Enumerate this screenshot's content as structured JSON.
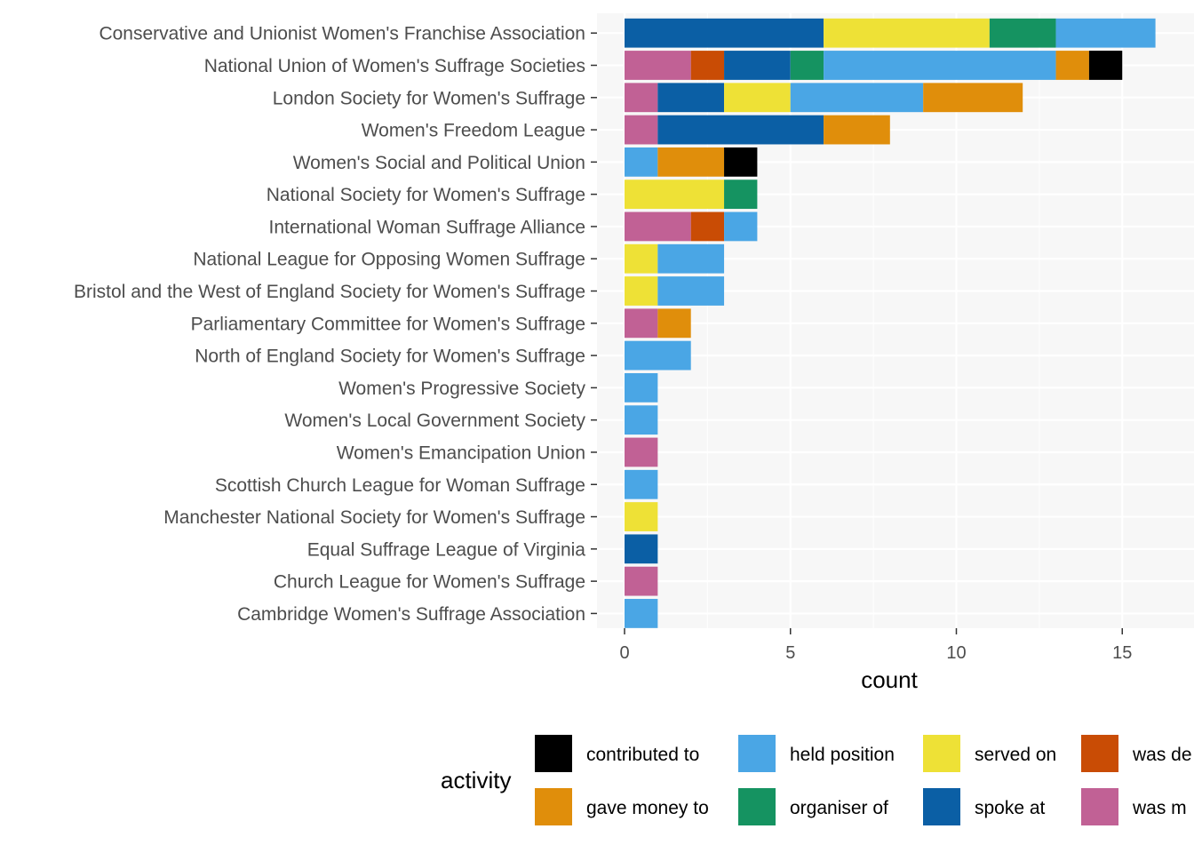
{
  "chart_data": {
    "type": "bar",
    "orientation": "horizontal",
    "stacked": true,
    "xlabel": "count",
    "ylabel": "",
    "xlim": [
      0,
      16.8
    ],
    "x_ticks": [
      0,
      5,
      10,
      15
    ],
    "grid": true,
    "legend_position": "bottom",
    "legend_title": "activity",
    "categories": [
      "Conservative and Unionist Women's Franchise Association",
      "National Union of Women's Suffrage Societies",
      "London Society for Women's Suffrage",
      "Women's Freedom League",
      "Women's Social and Political Union",
      "National Society for Women's Suffrage",
      "International Woman Suffrage Alliance",
      "National League for Opposing Women Suffrage",
      "Bristol and the West of England Society for Women's Suffrage",
      "Parliamentary Committee for Women's Suffrage",
      "North of England Society for Women's Suffrage",
      "Women's Progressive Society",
      "Women's Local Government Society",
      "Women's Emancipation Union",
      "Scottish Church League for Woman Suffrage",
      "Manchester National Society for Women's Suffrage",
      "Equal Suffrage League of Virginia",
      "Church League for Women's Suffrage",
      "Cambridge Women's Suffrage Association"
    ],
    "stack_order": [
      "was member of",
      "was delegate",
      "spoke at",
      "served on",
      "organiser of",
      "held position",
      "gave money to",
      "contributed to"
    ],
    "series": [
      {
        "name": "contributed to",
        "color": "#000000",
        "values": [
          0,
          1,
          0,
          0,
          1,
          0,
          0,
          0,
          0,
          0,
          0,
          0,
          0,
          0,
          0,
          0,
          0,
          0,
          0
        ]
      },
      {
        "name": "gave money to",
        "color": "#E08E0B",
        "values": [
          0,
          1,
          3,
          2,
          2,
          0,
          0,
          0,
          0,
          1,
          0,
          0,
          0,
          0,
          0,
          0,
          0,
          0,
          0
        ]
      },
      {
        "name": "held position",
        "color": "#4AA6E5",
        "values": [
          3,
          7,
          4,
          0,
          1,
          0,
          1,
          2,
          2,
          0,
          2,
          1,
          1,
          0,
          1,
          0,
          0,
          0,
          1
        ]
      },
      {
        "name": "organiser of",
        "color": "#159361",
        "values": [
          2,
          1,
          0,
          0,
          0,
          1,
          0,
          0,
          0,
          0,
          0,
          0,
          0,
          0,
          0,
          0,
          0,
          0,
          0
        ]
      },
      {
        "name": "served on",
        "color": "#EEE136",
        "values": [
          5,
          0,
          2,
          0,
          0,
          3,
          0,
          1,
          1,
          0,
          0,
          0,
          0,
          0,
          0,
          1,
          0,
          0,
          0
        ]
      },
      {
        "name": "spoke at",
        "color": "#0B5FA5",
        "values": [
          6,
          2,
          2,
          5,
          0,
          0,
          0,
          0,
          0,
          0,
          0,
          0,
          0,
          0,
          0,
          0,
          1,
          0,
          0
        ]
      },
      {
        "name": "was delegate",
        "color": "#C94C05",
        "values": [
          0,
          1,
          0,
          0,
          0,
          0,
          1,
          0,
          0,
          0,
          0,
          0,
          0,
          0,
          0,
          0,
          0,
          0,
          0
        ]
      },
      {
        "name": "was member of",
        "color": "#C16195",
        "values": [
          0,
          2,
          1,
          1,
          0,
          0,
          2,
          0,
          0,
          1,
          0,
          0,
          0,
          1,
          0,
          0,
          0,
          1,
          0
        ]
      }
    ],
    "legend": {
      "title": "activity",
      "items": [
        {
          "label": "contributed to",
          "color": "#000000"
        },
        {
          "label": "gave money to",
          "color": "#E08E0B"
        },
        {
          "label": "held position",
          "color": "#4AA6E5"
        },
        {
          "label": "organiser of",
          "color": "#159361"
        },
        {
          "label": "served on",
          "color": "#EEE136"
        },
        {
          "label": "spoke at",
          "color": "#0B5FA5"
        },
        {
          "label": "was delegate",
          "color": "#C94C05",
          "visible_label": "was de"
        },
        {
          "label": "was member of",
          "color": "#C16195",
          "visible_label": "was m"
        }
      ]
    }
  }
}
